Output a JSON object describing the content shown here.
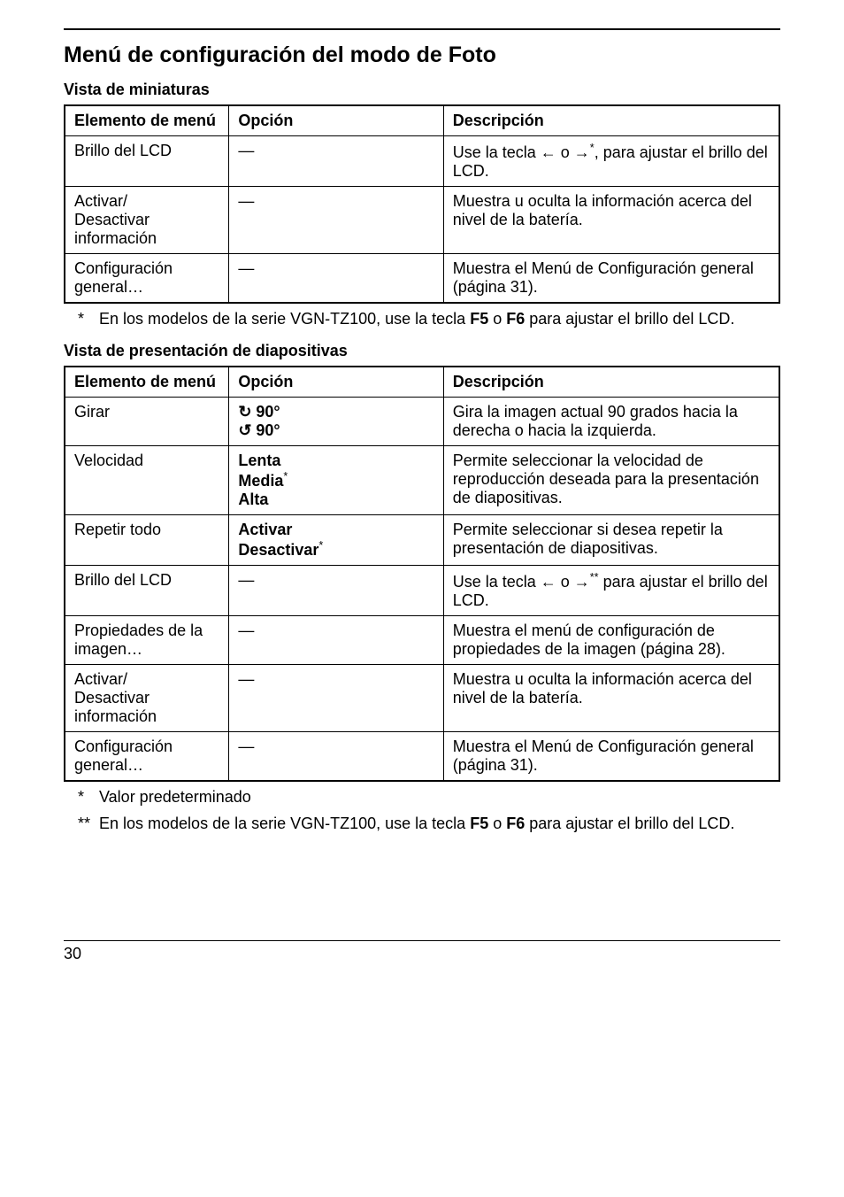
{
  "page": {
    "section_title": "Menú de configuración del modo de Foto",
    "page_number": "30"
  },
  "table1": {
    "heading": "Vista de miniaturas",
    "headers": {
      "c1": "Elemento de menú",
      "c2": "Opción",
      "c3": "Descripción"
    },
    "rows": [
      {
        "c1": "Brillo del LCD",
        "c2": "—",
        "c3_pre": "Use la tecla ",
        "c3_arrow_l": "←",
        "c3_mid": " o ",
        "c3_arrow_r": "→",
        "c3_sup": "*",
        "c3_post": ", para ajustar el brillo del LCD."
      },
      {
        "c1": "Activar/\nDesactivar información",
        "c2": "—",
        "c3": "Muestra u oculta la información acerca del nivel de la batería."
      },
      {
        "c1": "Configuración general…",
        "c2": "—",
        "c3": "Muestra el Menú de Configuración general (página 31)."
      }
    ],
    "footnote": {
      "mark": "*",
      "text_pre": "En los modelos de la serie VGN-TZ100, use la tecla ",
      "key1": "F5",
      "mid": " o ",
      "key2": "F6",
      "text_post": " para ajustar el brillo del LCD."
    }
  },
  "table2": {
    "heading": "Vista de presentación de diapositivas",
    "headers": {
      "c1": "Elemento de menú",
      "c2": "Opción",
      "c3": "Descripción"
    },
    "rows": {
      "r0": {
        "c1": "Girar",
        "c2a": "↻ 90°",
        "c2b": "↺ 90°",
        "c3": "Gira la imagen actual 90 grados hacia la derecha o hacia la izquierda."
      },
      "r1": {
        "c1": "Velocidad",
        "c2a": "Lenta",
        "c2b": "Media",
        "c2b_sup": "*",
        "c2c": "Alta",
        "c3": "Permite seleccionar la velocidad de reproducción deseada para la presentación de diapositivas."
      },
      "r2": {
        "c1": "Repetir todo",
        "c2a": "Activar",
        "c2b": "Desactivar",
        "c2b_sup": "*",
        "c3": "Permite seleccionar si desea repetir la presentación de diapositivas."
      },
      "r3": {
        "c1": "Brillo del LCD",
        "c2": "—",
        "c3_pre": "Use la tecla ",
        "c3_arrow_l": "←",
        "c3_mid": " o ",
        "c3_arrow_r": "→",
        "c3_sup": "**",
        "c3_post": " para ajustar el brillo del LCD."
      },
      "r4": {
        "c1": "Propiedades de la imagen…",
        "c2": "—",
        "c3": "Muestra el menú de configuración de propiedades de la imagen (página 28)."
      },
      "r5": {
        "c1": "Activar/\nDesactivar información",
        "c2": "—",
        "c3": "Muestra u oculta la información acerca del nivel de la batería."
      },
      "r6": {
        "c1": "Configuración general…",
        "c2": "—",
        "c3": "Muestra el Menú de Configuración general (página 31)."
      }
    },
    "footnote1": {
      "mark": "*",
      "text": "Valor predeterminado"
    },
    "footnote2": {
      "mark": "**",
      "text_pre": "En los modelos de la serie VGN-TZ100, use la tecla ",
      "key1": "F5",
      "mid": " o ",
      "key2": "F6",
      "text_post": " para ajustar el brillo del LCD."
    }
  }
}
